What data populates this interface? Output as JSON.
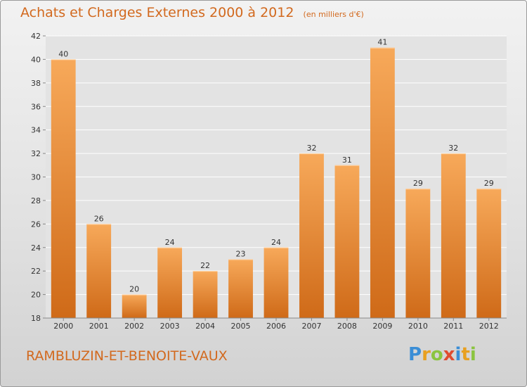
{
  "title": "Achats et Charges Externes 2000 à 2012",
  "unit_note": "(en milliers d'€)",
  "commune": "RAMBLUZIN-ET-BENOITE-VAUX",
  "logo": {
    "letters": [
      "P",
      "r",
      "o",
      "x",
      "i",
      "t",
      "i"
    ],
    "colors": [
      "#3b8ed6",
      "#e8a020",
      "#8bc43f",
      "#e04b2f",
      "#3b8ed6",
      "#e8a020",
      "#8bc43f"
    ]
  },
  "colors": {
    "bar_light": "#f7a95a",
    "bar_dark": "#cf6a18",
    "title": "#d2691e",
    "grid": "#ffffff"
  },
  "chart_data": {
    "type": "bar",
    "categories": [
      "2000",
      "2001",
      "2002",
      "2003",
      "2004",
      "2005",
      "2006",
      "2007",
      "2008",
      "2009",
      "2010",
      "2011",
      "2012"
    ],
    "values": [
      40,
      26,
      20,
      24,
      22,
      23,
      24,
      32,
      31,
      41,
      29,
      32,
      29
    ],
    "ylim": [
      18,
      42
    ],
    "yticks": [
      18,
      20,
      22,
      24,
      26,
      28,
      30,
      32,
      34,
      36,
      38,
      40,
      42
    ],
    "grid": true,
    "xlabel": "",
    "ylabel": ""
  }
}
